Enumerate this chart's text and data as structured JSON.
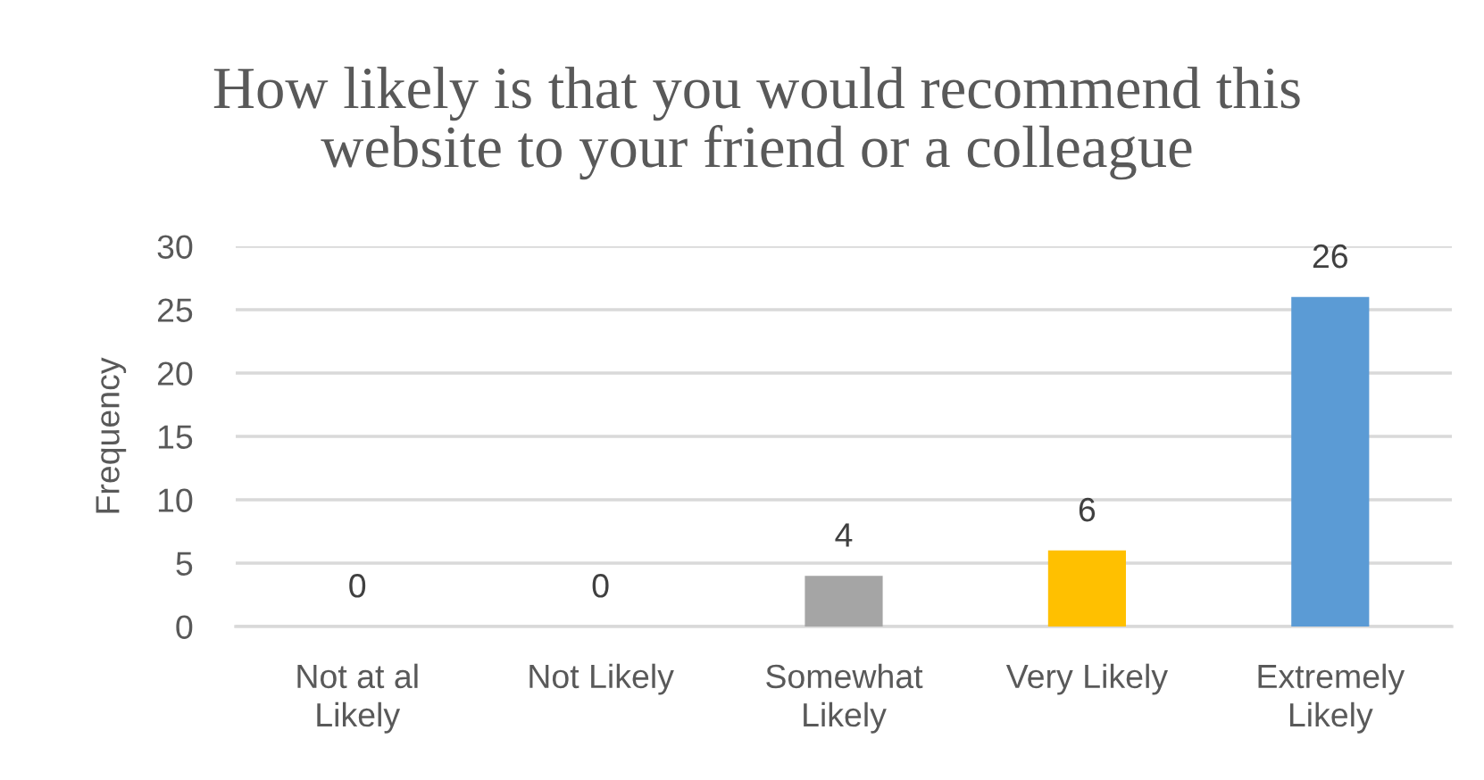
{
  "chart_data": {
    "type": "bar",
    "title": "How likely is that you would recommend this website to your friend or a colleague",
    "ylabel": "Frequency",
    "categories": [
      "Not at al Likely",
      "Not Likely",
      "Somewhat Likely",
      "Very Likely",
      "Extremely Likely"
    ],
    "values": [
      0,
      0,
      4,
      6,
      26
    ],
    "colors": [
      "#5b9bd5",
      "#ed7d31",
      "#a5a5a5",
      "#ffc000",
      "#5b9bd5"
    ],
    "ylim": [
      0,
      30
    ],
    "yticks": [
      0,
      5,
      10,
      15,
      20,
      25,
      30
    ],
    "grid": "y",
    "data_labels": true
  }
}
